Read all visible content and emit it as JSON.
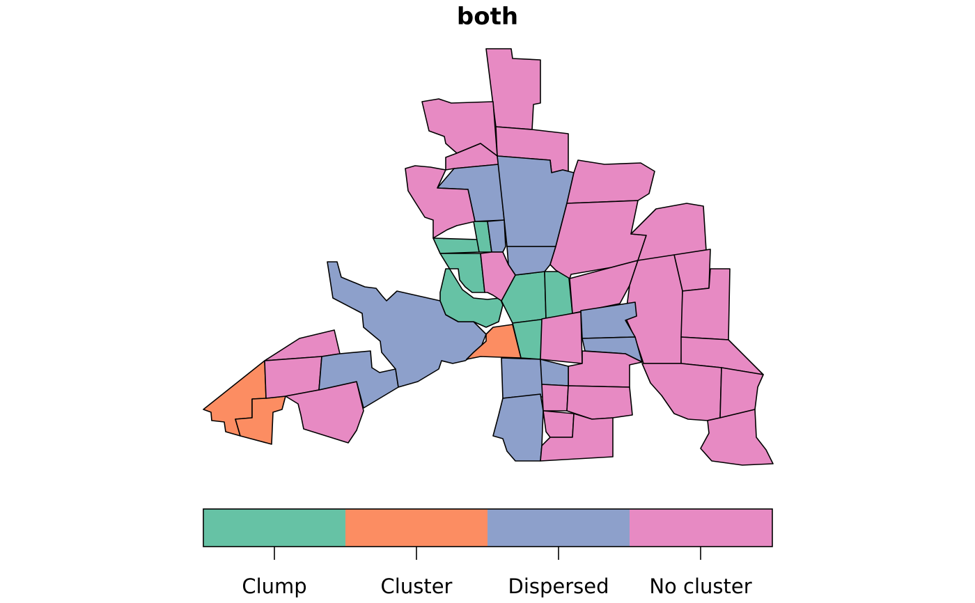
{
  "title": "both",
  "colors": {
    "Clump": "#66c2a5",
    "Cluster": "#fc8d62",
    "Dispersed": "#8da0cb",
    "No cluster": "#e78ac3"
  },
  "legend": {
    "categories": [
      "Clump",
      "Cluster",
      "Dispersed",
      "No cluster"
    ]
  }
}
